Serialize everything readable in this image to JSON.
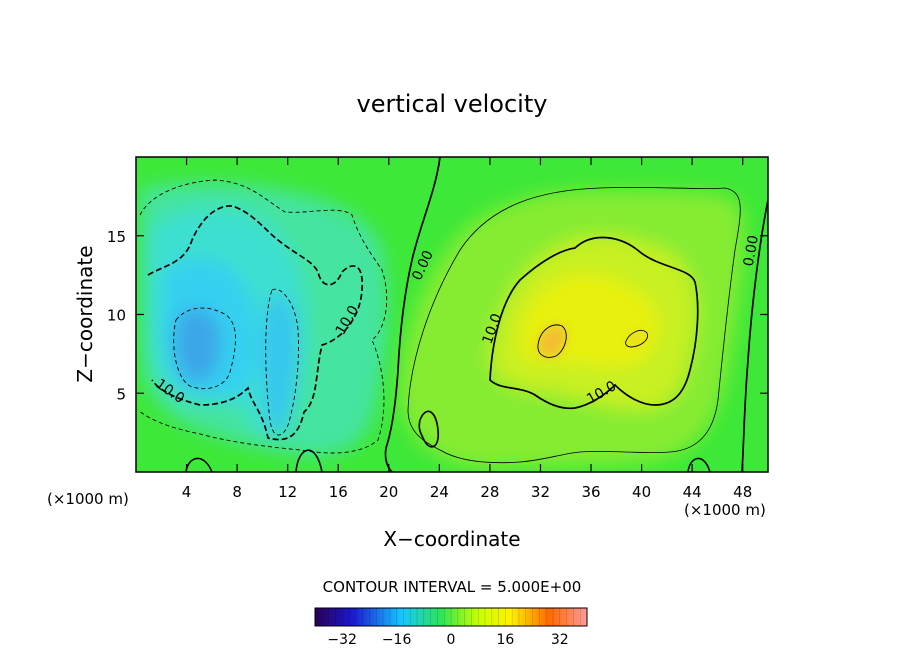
{
  "chart_data": {
    "type": "heatmap",
    "title": "vertical velocity",
    "xlabel": "X−coordinate",
    "ylabel": "Z−coordinate",
    "x_unit": "(×1000 m)",
    "x_unit_right": "(×1000 m)",
    "xlim": [
      0,
      50
    ],
    "ylim": [
      0,
      20
    ],
    "xticks": [
      4,
      8,
      12,
      16,
      20,
      24,
      28,
      32,
      36,
      40,
      44,
      48
    ],
    "yticks": [
      5,
      10,
      15
    ],
    "contour_interval_text": "CONTOUR INTERVAL = 5.000E+00",
    "colorbar": {
      "range": [
        -40,
        40
      ],
      "ticks": [
        -32,
        -16,
        0,
        16,
        32
      ],
      "tick_labels": [
        "−32",
        "−16",
        "0",
        "16",
        "32"
      ]
    },
    "contour_labels": [
      {
        "text": "10.0",
        "x": 2.5,
        "y": 4.9,
        "angle": 35
      },
      {
        "text": "10.0",
        "x": 17.0,
        "y": 9.5,
        "angle": -60
      },
      {
        "text": "0.00",
        "x": 23.0,
        "y": 13.0,
        "angle": -65
      },
      {
        "text": "10.0",
        "x": 28.5,
        "y": 9.0,
        "angle": -70
      },
      {
        "text": "10.0",
        "x": 37.0,
        "y": 4.8,
        "angle": -30
      },
      {
        "text": "0.00",
        "x": 49.0,
        "y": 14.0,
        "angle": -80
      }
    ]
  }
}
